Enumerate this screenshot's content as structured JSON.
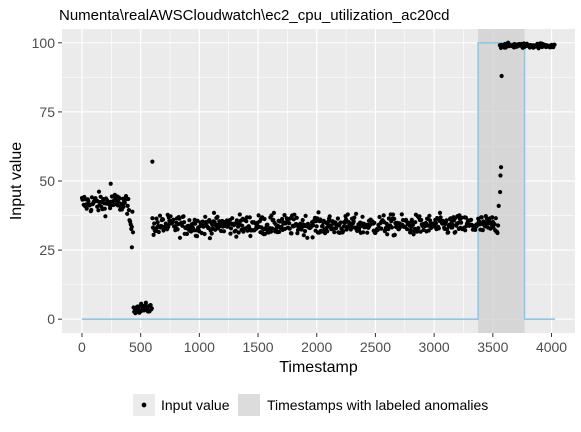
{
  "chart_data": {
    "type": "scatter",
    "title": "Numenta\\realAWSCloudwatch\\ec2_cpu_utilization_ac20cd",
    "xlabel": "Timestamp",
    "ylabel": "Input value",
    "xlim": [
      -170,
      4200
    ],
    "ylim": [
      -5,
      105
    ],
    "x_ticks": [
      0,
      500,
      1000,
      1500,
      2000,
      2500,
      3000,
      3500,
      4000
    ],
    "x_tick_labels": [
      "0",
      "500",
      "1000",
      "1500",
      "2000",
      "2500",
      "3000",
      "3500",
      "4000"
    ],
    "y_ticks": [
      0,
      25,
      50,
      75,
      100
    ],
    "y_tick_labels": [
      "0",
      "25",
      "50",
      "75",
      "100"
    ],
    "grid": true,
    "legend_position": "bottom",
    "colors": {
      "panel": "#ebebeb",
      "grid": "#ffffff",
      "points": "#000000",
      "anomaly_window": "#cfcfcf",
      "label_line": "#8fc7ea"
    },
    "series": [
      {
        "name": "Input value",
        "kind": "points",
        "segments": [
          {
            "x_start": 0,
            "x_end": 400,
            "y_center": 42,
            "y_spread": 3
          },
          {
            "x_start": 400,
            "x_end": 440,
            "y_center": 34,
            "y_spread": 4
          },
          {
            "x_start": 440,
            "x_end": 600,
            "y_center": 4,
            "y_spread": 1.5
          },
          {
            "x_start": 600,
            "x_end": 3550,
            "y_center": 34,
            "y_spread": 3
          },
          {
            "x_start": 3560,
            "x_end": 4030,
            "y_center": 99,
            "y_spread": 0.7
          }
        ],
        "outliers": [
          {
            "x": 600,
            "y": 57
          },
          {
            "x": 3575,
            "y": 88
          },
          {
            "x": 3570,
            "y": 55
          },
          {
            "x": 3565,
            "y": 52
          },
          {
            "x": 3562,
            "y": 46
          },
          {
            "x": 425,
            "y": 26
          },
          {
            "x": 245,
            "y": 49
          },
          {
            "x": 3550,
            "y": 41
          }
        ]
      },
      {
        "name": "Timestamps with labeled anomalies",
        "kind": "window",
        "window": {
          "x_start": 3375,
          "x_end": 3770
        },
        "label_step": [
          [
            0,
            0
          ],
          [
            3375,
            0
          ],
          [
            3375,
            100
          ],
          [
            3770,
            100
          ],
          [
            3770,
            0
          ],
          [
            4030,
            0
          ]
        ]
      }
    ],
    "legend": {
      "points_label": "Input value",
      "window_label": "Timestamps with labeled anomalies"
    }
  }
}
